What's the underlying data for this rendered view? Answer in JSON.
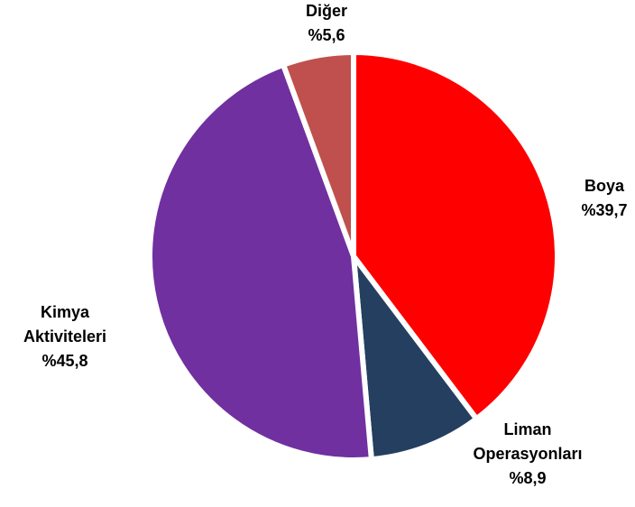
{
  "chart_data": {
    "type": "pie",
    "categories": [
      "Boya",
      "Liman Operasyonları",
      "Kimya Aktiviteleri",
      "Diğer"
    ],
    "values": [
      39.7,
      8.9,
      45.8,
      5.6
    ],
    "value_labels": [
      "%39,7",
      "%8,9",
      "%45,8",
      "%5,6"
    ],
    "colors": [
      "#ff0000",
      "#243f60",
      "#7030a0",
      "#c0504d"
    ]
  }
}
